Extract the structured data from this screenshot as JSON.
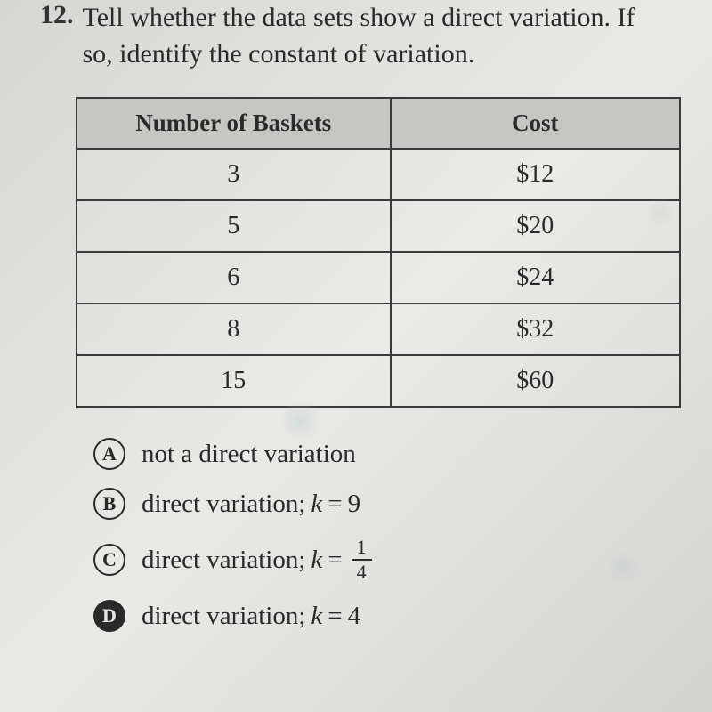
{
  "question": {
    "number": "12.",
    "text": "Tell whether the data sets show a direct variation. If so, identify the constant of variation."
  },
  "table": {
    "columns": [
      "Number of Baskets",
      "Cost"
    ],
    "rows": [
      [
        "3",
        "$12"
      ],
      [
        "5",
        "$20"
      ],
      [
        "6",
        "$24"
      ],
      [
        "8",
        "$32"
      ],
      [
        "15",
        "$60"
      ]
    ],
    "header_bg": "#c8c6c2",
    "border_color": "#3a3a3a"
  },
  "choices": [
    {
      "letter": "A",
      "text": "not a direct variation",
      "filled": false,
      "has_k": false
    },
    {
      "letter": "B",
      "prefix": "direct variation; ",
      "k_value": "9",
      "filled": false,
      "has_k": true,
      "is_fraction": false
    },
    {
      "letter": "C",
      "prefix": "direct variation; ",
      "frac_num": "1",
      "frac_den": "4",
      "filled": false,
      "has_k": true,
      "is_fraction": true
    },
    {
      "letter": "D",
      "prefix": "direct variation; ",
      "k_value": "4",
      "filled": true,
      "has_k": true,
      "is_fraction": false
    }
  ],
  "styling": {
    "page_bg_start": "#d8d6d2",
    "page_bg_end": "#d5d3cf",
    "text_color": "#2a2a2a",
    "body_fontsize": 30,
    "choice_fontsize": 29,
    "circle_size": 36
  }
}
